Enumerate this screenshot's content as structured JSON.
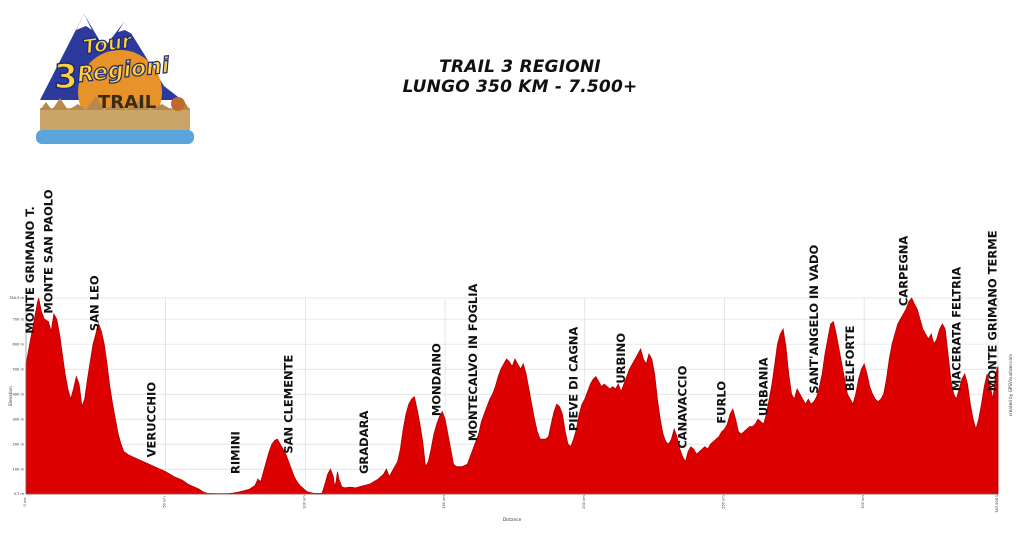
{
  "title": {
    "line1": "TRAIL 3 REGIONI",
    "line2": "LUNGO 350 KM - 7.500+"
  },
  "logo": {
    "word1": "Tour",
    "word2": "3",
    "word3": "Regioni",
    "word4": "TRAIL"
  },
  "colors": {
    "fill": "#dd0000",
    "stroke": "#b00000",
    "grid": "#d6d6d6",
    "logo_blue": "#2b3a9c",
    "logo_orange": "#e8922a"
  },
  "chart_data": {
    "type": "area",
    "xlabel": "Distance",
    "ylabel": "Elevation",
    "attribution": "created by GPSVisualizer.com",
    "x_unit": "km",
    "y_unit": "m",
    "xlim": [
      0,
      347.906
    ],
    "ylim": [
      0.7,
      784.5
    ],
    "x_ticks": [
      {
        "value": 0,
        "label": "0 km"
      },
      {
        "value": 50,
        "label": "50 km"
      },
      {
        "value": 100,
        "label": "100 km"
      },
      {
        "value": 150,
        "label": "150 km"
      },
      {
        "value": 200,
        "label": "200 km"
      },
      {
        "value": 250,
        "label": "250 km"
      },
      {
        "value": 300,
        "label": "300 km"
      },
      {
        "value": 347.906,
        "label": "347.906 km"
      }
    ],
    "y_ticks": [
      {
        "value": 0.7,
        "label": "0.7 m"
      },
      {
        "value": 100,
        "label": "100 m"
      },
      {
        "value": 200,
        "label": "200 m"
      },
      {
        "value": 300,
        "label": "300 m"
      },
      {
        "value": 400,
        "label": "400 m"
      },
      {
        "value": 500,
        "label": "500 m"
      },
      {
        "value": 600,
        "label": "600 m"
      },
      {
        "value": 700,
        "label": "700 m"
      },
      {
        "value": 784.5,
        "label": "784.5 m"
      }
    ],
    "profile": [
      [
        0,
        520
      ],
      [
        1,
        580
      ],
      [
        2,
        640
      ],
      [
        3,
        700
      ],
      [
        4,
        760
      ],
      [
        4.5,
        784
      ],
      [
        5.5,
        730
      ],
      [
        6.5,
        700
      ],
      [
        8,
        690
      ],
      [
        9,
        650
      ],
      [
        10,
        720
      ],
      [
        11,
        700
      ],
      [
        12,
        640
      ],
      [
        13,
        560
      ],
      [
        14,
        480
      ],
      [
        15,
        420
      ],
      [
        16,
        380
      ],
      [
        17,
        420
      ],
      [
        18,
        470
      ],
      [
        19,
        440
      ],
      [
        20,
        350
      ],
      [
        21,
        380
      ],
      [
        22,
        460
      ],
      [
        23,
        530
      ],
      [
        24,
        600
      ],
      [
        25,
        640
      ],
      [
        26,
        680
      ],
      [
        27,
        650
      ],
      [
        28,
        600
      ],
      [
        29,
        520
      ],
      [
        30,
        430
      ],
      [
        31,
        360
      ],
      [
        32,
        300
      ],
      [
        33,
        240
      ],
      [
        34,
        200
      ],
      [
        35,
        170
      ],
      [
        37,
        155
      ],
      [
        40,
        140
      ],
      [
        43,
        125
      ],
      [
        46,
        110
      ],
      [
        50,
        90
      ],
      [
        53,
        70
      ],
      [
        56,
        55
      ],
      [
        58,
        40
      ],
      [
        60,
        30
      ],
      [
        62,
        20
      ],
      [
        63,
        12
      ],
      [
        64,
        6
      ],
      [
        65,
        3
      ],
      [
        68,
        2
      ],
      [
        70,
        2
      ],
      [
        72,
        2
      ],
      [
        74,
        4
      ],
      [
        76,
        8
      ],
      [
        78,
        14
      ],
      [
        80,
        20
      ],
      [
        82,
        35
      ],
      [
        83,
        60
      ],
      [
        84,
        50
      ],
      [
        85,
        90
      ],
      [
        86,
        130
      ],
      [
        87,
        170
      ],
      [
        88,
        200
      ],
      [
        89,
        215
      ],
      [
        90,
        220
      ],
      [
        91,
        200
      ],
      [
        92,
        180
      ],
      [
        93,
        160
      ],
      [
        94,
        130
      ],
      [
        95,
        100
      ],
      [
        96,
        70
      ],
      [
        97,
        50
      ],
      [
        98,
        35
      ],
      [
        99,
        25
      ],
      [
        100,
        15
      ],
      [
        101,
        8
      ],
      [
        103,
        3
      ],
      [
        105,
        3
      ],
      [
        106,
        3
      ],
      [
        107,
        40
      ],
      [
        108,
        80
      ],
      [
        109,
        100
      ],
      [
        110,
        70
      ],
      [
        110.5,
        30
      ],
      [
        111,
        50
      ],
      [
        111.5,
        90
      ],
      [
        112,
        60
      ],
      [
        113,
        30
      ],
      [
        114,
        25
      ],
      [
        116,
        28
      ],
      [
        118,
        25
      ],
      [
        120,
        32
      ],
      [
        123,
        40
      ],
      [
        126,
        60
      ],
      [
        128,
        80
      ],
      [
        129,
        100
      ],
      [
        130,
        70
      ],
      [
        131,
        90
      ],
      [
        132,
        110
      ],
      [
        133,
        130
      ],
      [
        134,
        180
      ],
      [
        135,
        260
      ],
      [
        136,
        320
      ],
      [
        137,
        360
      ],
      [
        138,
        380
      ],
      [
        139,
        390
      ],
      [
        140,
        340
      ],
      [
        141,
        280
      ],
      [
        142,
        210
      ],
      [
        143,
        110
      ],
      [
        144,
        130
      ],
      [
        145,
        180
      ],
      [
        146,
        240
      ],
      [
        147,
        280
      ],
      [
        148,
        310
      ],
      [
        149,
        330
      ],
      [
        150,
        300
      ],
      [
        151,
        240
      ],
      [
        152,
        180
      ],
      [
        153,
        120
      ],
      [
        154,
        110
      ],
      [
        156,
        110
      ],
      [
        158,
        120
      ],
      [
        160,
        180
      ],
      [
        162,
        240
      ],
      [
        163,
        290
      ],
      [
        164,
        320
      ],
      [
        165,
        350
      ],
      [
        166,
        380
      ],
      [
        167,
        400
      ],
      [
        168,
        430
      ],
      [
        169,
        470
      ],
      [
        170,
        500
      ],
      [
        171,
        520
      ],
      [
        172,
        540
      ],
      [
        173,
        530
      ],
      [
        174,
        510
      ],
      [
        175,
        540
      ],
      [
        176,
        520
      ],
      [
        177,
        500
      ],
      [
        178,
        520
      ],
      [
        179,
        480
      ],
      [
        180,
        420
      ],
      [
        181,
        360
      ],
      [
        182,
        300
      ],
      [
        183,
        250
      ],
      [
        184,
        220
      ],
      [
        185,
        220
      ],
      [
        186,
        220
      ],
      [
        187,
        230
      ],
      [
        188,
        280
      ],
      [
        189,
        330
      ],
      [
        190,
        360
      ],
      [
        191,
        350
      ],
      [
        192,
        320
      ],
      [
        193,
        250
      ],
      [
        194,
        200
      ],
      [
        195,
        190
      ],
      [
        196,
        220
      ],
      [
        197,
        260
      ],
      [
        198,
        320
      ],
      [
        199,
        360
      ],
      [
        200,
        380
      ],
      [
        201,
        410
      ],
      [
        202,
        440
      ],
      [
        203,
        460
      ],
      [
        204,
        470
      ],
      [
        205,
        450
      ],
      [
        206,
        430
      ],
      [
        207,
        440
      ],
      [
        208,
        430
      ],
      [
        209,
        420
      ],
      [
        210,
        430
      ],
      [
        211,
        420
      ],
      [
        212,
        440
      ],
      [
        213,
        410
      ],
      [
        214,
        440
      ],
      [
        215,
        470
      ],
      [
        216,
        500
      ],
      [
        217,
        520
      ],
      [
        218,
        540
      ],
      [
        219,
        560
      ],
      [
        220,
        580
      ],
      [
        221,
        540
      ],
      [
        222,
        520
      ],
      [
        223,
        560
      ],
      [
        224,
        540
      ],
      [
        225,
        480
      ],
      [
        226,
        380
      ],
      [
        227,
        300
      ],
      [
        228,
        240
      ],
      [
        229,
        210
      ],
      [
        230,
        200
      ],
      [
        231,
        220
      ],
      [
        232,
        260
      ],
      [
        233,
        230
      ],
      [
        234,
        180
      ],
      [
        235,
        150
      ],
      [
        236,
        130
      ],
      [
        237,
        170
      ],
      [
        238,
        190
      ],
      [
        239,
        180
      ],
      [
        240,
        160
      ],
      [
        241,
        170
      ],
      [
        242,
        180
      ],
      [
        243,
        190
      ],
      [
        244,
        180
      ],
      [
        245,
        200
      ],
      [
        246,
        210
      ],
      [
        247,
        220
      ],
      [
        248,
        230
      ],
      [
        249,
        250
      ],
      [
        250,
        260
      ],
      [
        251,
        280
      ],
      [
        252,
        320
      ],
      [
        253,
        340
      ],
      [
        254,
        300
      ],
      [
        255,
        250
      ],
      [
        256,
        240
      ],
      [
        257,
        250
      ],
      [
        258,
        260
      ],
      [
        259,
        270
      ],
      [
        260,
        270
      ],
      [
        261,
        280
      ],
      [
        262,
        300
      ],
      [
        263,
        290
      ],
      [
        264,
        280
      ],
      [
        265,
        320
      ],
      [
        266,
        380
      ],
      [
        267,
        440
      ],
      [
        268,
        520
      ],
      [
        269,
        600
      ],
      [
        270,
        640
      ],
      [
        271,
        660
      ],
      [
        272,
        590
      ],
      [
        273,
        480
      ],
      [
        274,
        400
      ],
      [
        275,
        380
      ],
      [
        276,
        420
      ],
      [
        277,
        400
      ],
      [
        278,
        380
      ],
      [
        279,
        360
      ],
      [
        280,
        380
      ],
      [
        281,
        360
      ],
      [
        282,
        370
      ],
      [
        283,
        390
      ],
      [
        284,
        430
      ],
      [
        285,
        480
      ],
      [
        286,
        560
      ],
      [
        287,
        620
      ],
      [
        288,
        680
      ],
      [
        289,
        690
      ],
      [
        290,
        640
      ],
      [
        291,
        580
      ],
      [
        292,
        520
      ],
      [
        293,
        460
      ],
      [
        294,
        400
      ],
      [
        295,
        380
      ],
      [
        296,
        360
      ],
      [
        297,
        400
      ],
      [
        298,
        460
      ],
      [
        299,
        500
      ],
      [
        300,
        520
      ],
      [
        301,
        480
      ],
      [
        302,
        430
      ],
      [
        303,
        400
      ],
      [
        304,
        380
      ],
      [
        305,
        370
      ],
      [
        306,
        380
      ],
      [
        307,
        400
      ],
      [
        308,
        460
      ],
      [
        309,
        540
      ],
      [
        310,
        600
      ],
      [
        311,
        640
      ],
      [
        312,
        680
      ],
      [
        313,
        700
      ],
      [
        314,
        720
      ],
      [
        315,
        740
      ],
      [
        316,
        770
      ],
      [
        317,
        784
      ],
      [
        318,
        760
      ],
      [
        319,
        740
      ],
      [
        320,
        700
      ],
      [
        321,
        660
      ],
      [
        322,
        640
      ],
      [
        323,
        620
      ],
      [
        324,
        640
      ],
      [
        325,
        600
      ],
      [
        326,
        620
      ],
      [
        327,
        660
      ],
      [
        328,
        680
      ],
      [
        329,
        660
      ],
      [
        330,
        560
      ],
      [
        331,
        460
      ],
      [
        332,
        400
      ],
      [
        333,
        380
      ],
      [
        334,
        420
      ],
      [
        335,
        460
      ],
      [
        336,
        480
      ],
      [
        337,
        440
      ],
      [
        338,
        360
      ],
      [
        339,
        300
      ],
      [
        340,
        260
      ],
      [
        341,
        300
      ],
      [
        342,
        360
      ],
      [
        343,
        430
      ],
      [
        344,
        480
      ],
      [
        345,
        440
      ],
      [
        346,
        380
      ],
      [
        346.5,
        420
      ],
      [
        347,
        480
      ],
      [
        347.906,
        510
      ]
    ],
    "annotations": [
      {
        "label": "MONTE GRIMANO T.",
        "km": 1.5
      },
      {
        "label": "MONTE SAN PAOLO",
        "km": 8
      },
      {
        "label": "SAN LEO",
        "km": 24.5
      },
      {
        "label": "VERUCCHIO",
        "km": 45
      },
      {
        "label": "RIMINI",
        "km": 75
      },
      {
        "label": "SAN CLEMENTE",
        "km": 94
      },
      {
        "label": "GRADARA",
        "km": 121
      },
      {
        "label": "MONDAINO",
        "km": 147
      },
      {
        "label": "MONTECALVO IN FOGLIA",
        "km": 160
      },
      {
        "label": "PIEVE DI CAGNA",
        "km": 196
      },
      {
        "label": "URBINO",
        "km": 213
      },
      {
        "label": "CANAVACCIO",
        "km": 235
      },
      {
        "label": "FURLO",
        "km": 249
      },
      {
        "label": "URBANIA",
        "km": 264
      },
      {
        "label": "SANT'ANGELO IN VADO",
        "km": 282
      },
      {
        "label": "BELFORTE",
        "km": 295
      },
      {
        "label": "CARPEGNA",
        "km": 314
      },
      {
        "label": "MACERATA FELTRIA",
        "km": 333
      },
      {
        "label": "MONTE GRIMANO TERME",
        "km": 346
      }
    ]
  }
}
